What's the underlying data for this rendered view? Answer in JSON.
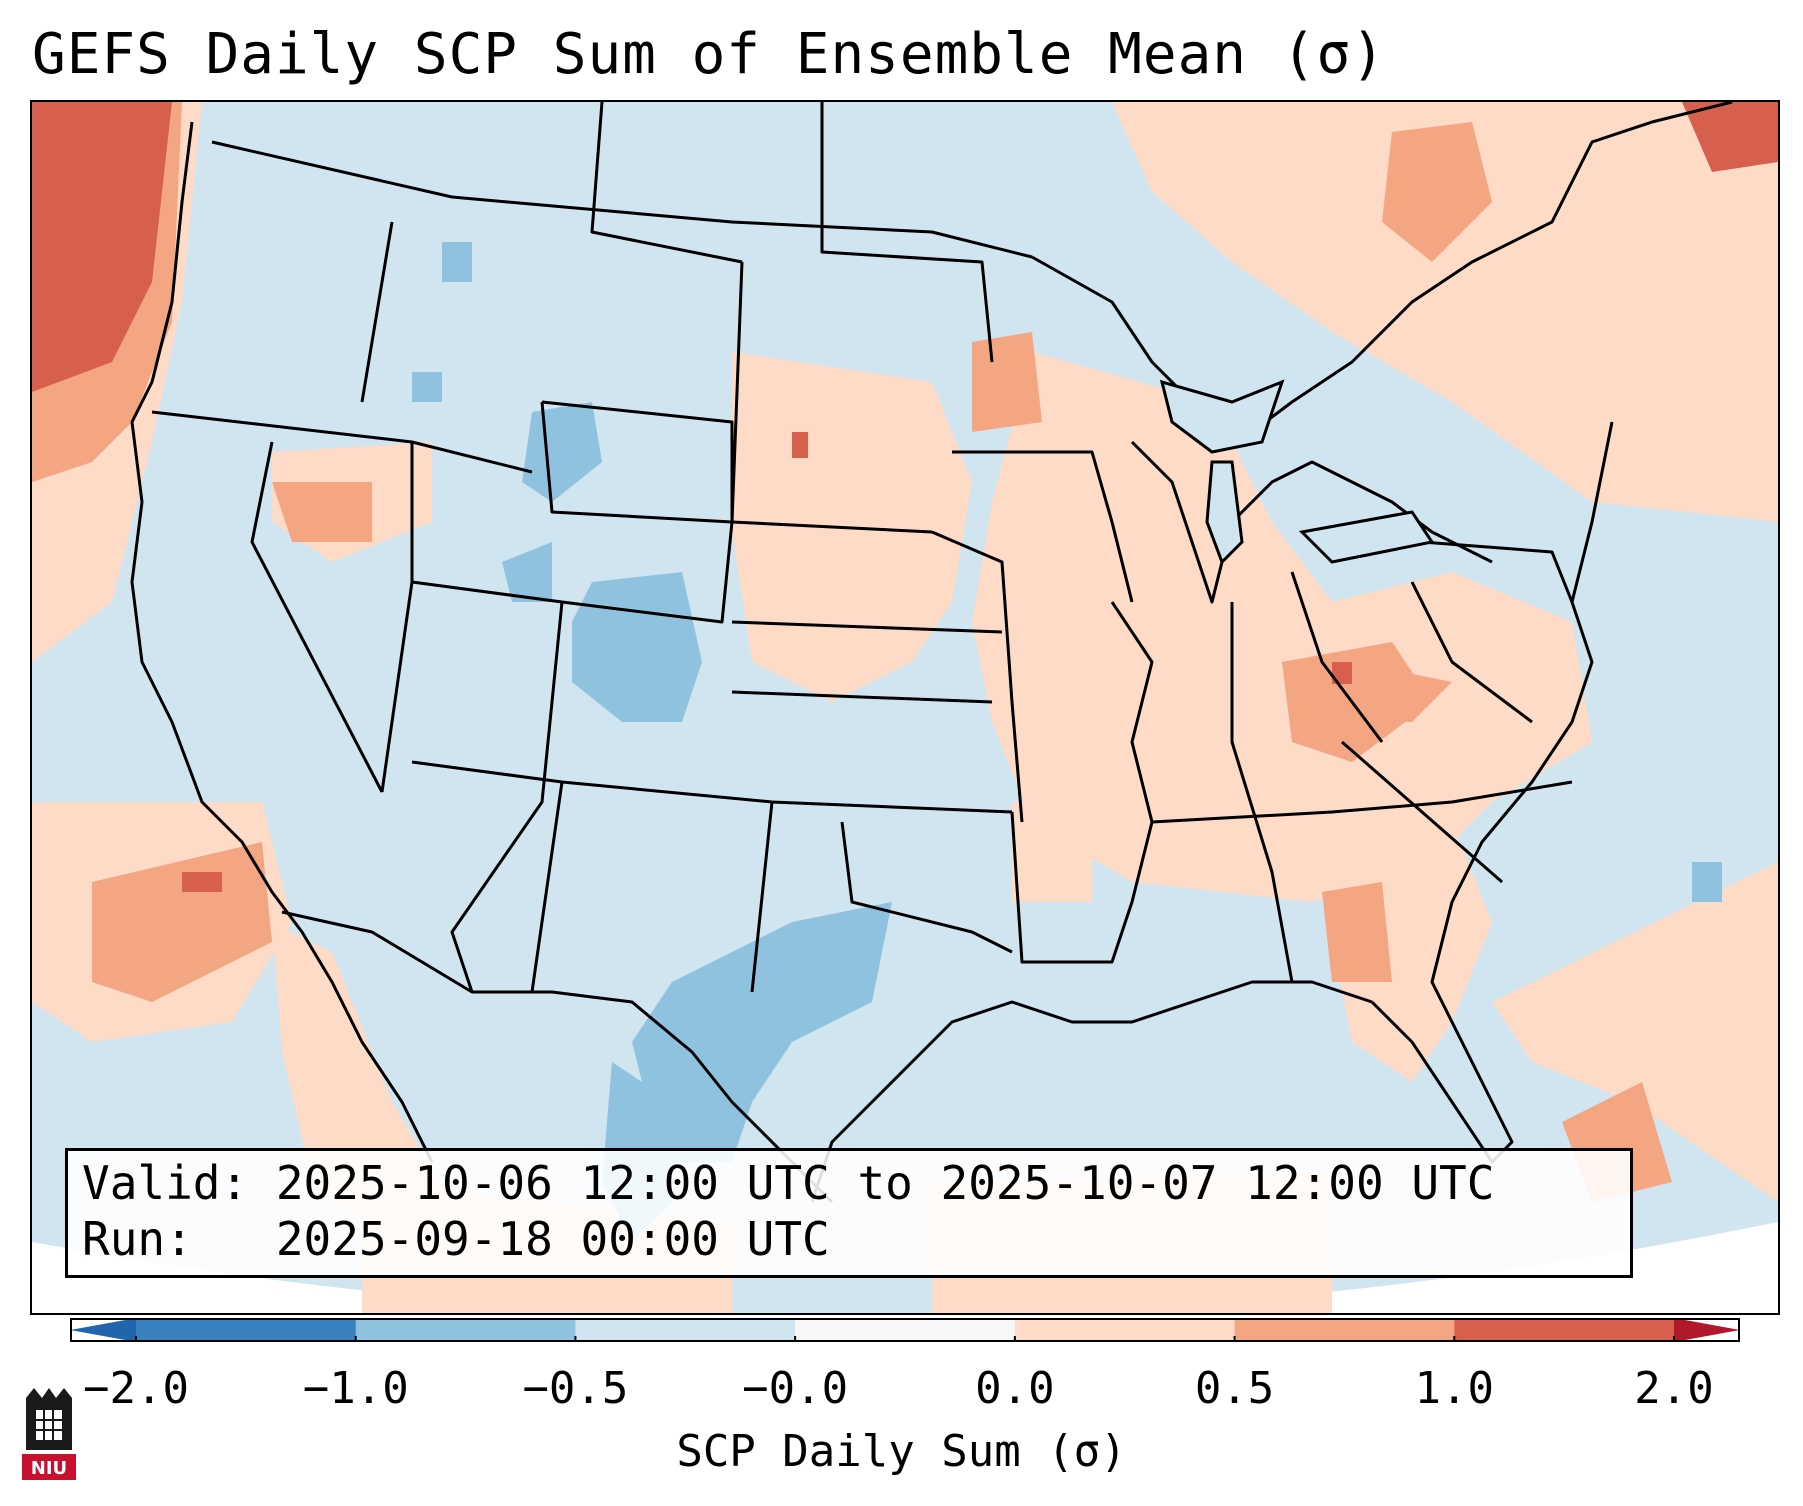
{
  "title": "GEFS Daily SCP Sum of Ensemble Mean (σ)",
  "info": {
    "valid_line": "Valid: 2025-10-06 12:00 UTC to 2025-10-07 12:00 UTC",
    "run_line": "Run:   2025-09-18 00:00 UTC"
  },
  "colorbar": {
    "label": "SCP Daily Sum (σ)",
    "tick_labels": [
      "−2.0",
      "−1.0",
      "−0.5",
      "−0.0",
      "0.0",
      "0.5",
      "1.0",
      "2.0"
    ],
    "bin_colors": [
      "#3a82bf",
      "#8fc2de",
      "#d1e5f0",
      "#f7f7f7",
      "#fddbc7",
      "#f4a582",
      "#d6604d"
    ],
    "under_color": "#2166ac",
    "over_color": "#b2182b"
  },
  "colors": {
    "ocean": "#d1e5f0",
    "outside_projection": "#ffffff",
    "state_lines": "#000000"
  },
  "logo": {
    "name": "NIU"
  }
}
